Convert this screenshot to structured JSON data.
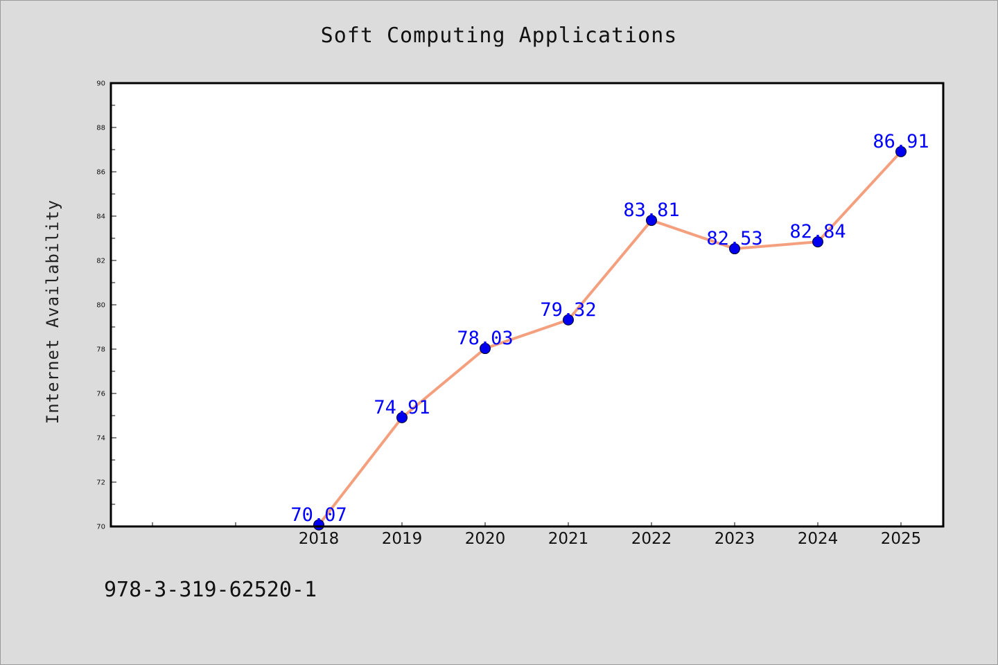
{
  "chart_data": {
    "type": "line",
    "title": "Soft Computing Applications",
    "xlabel": "",
    "ylabel": "Internet Availability",
    "categories": [
      "2018",
      "2019",
      "2020",
      "2021",
      "2022",
      "2023",
      "2024",
      "2025"
    ],
    "series": [
      {
        "values": [
          70.07,
          74.91,
          78.03,
          79.32,
          83.81,
          82.53,
          82.84,
          86.91
        ],
        "labels": [
          "70.07",
          "74.91",
          "78.03",
          "79.32",
          "83.81",
          "82.53",
          "82.84",
          "86.91"
        ],
        "line_color": "#f4a07f",
        "marker_color": "#0000ee",
        "label_color": "#0000ff"
      }
    ],
    "ylim": [
      70,
      90
    ],
    "y_ticks": [
      "70",
      "72",
      "74",
      "76",
      "78",
      "80",
      "82",
      "84",
      "86",
      "88",
      "90"
    ],
    "grid": false,
    "legend": "none"
  },
  "annotation": "978-3-319-62520-1"
}
